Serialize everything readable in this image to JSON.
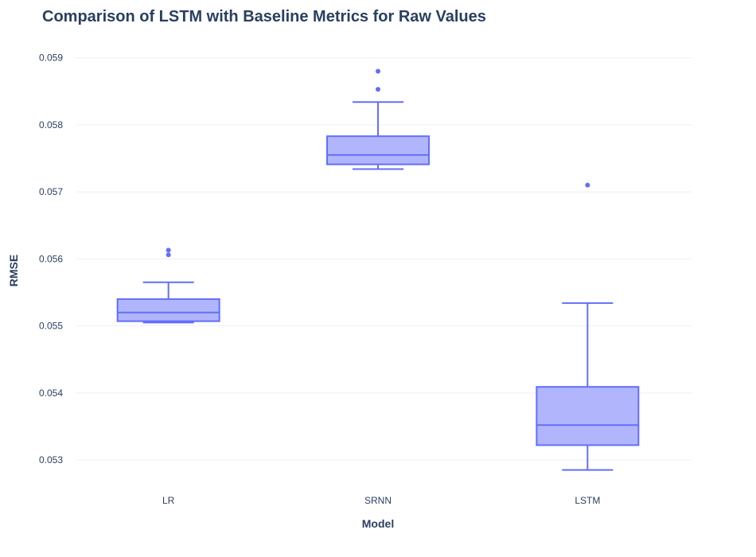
{
  "chart_data": {
    "type": "box",
    "title": "Comparison of LSTM with Baseline Metrics for Raw Values",
    "xlabel": "Model",
    "ylabel": "RMSE",
    "categories": [
      "LR",
      "SRNN",
      "LSTM"
    ],
    "ylim": [
      0.05262,
      0.05915
    ],
    "yticks": [
      0.053,
      0.054,
      0.055,
      0.056,
      0.057,
      0.058,
      0.059
    ],
    "ytick_labels": [
      "0.053",
      "0.054",
      "0.055",
      "0.056",
      "0.057",
      "0.058",
      "0.059"
    ],
    "grid": true,
    "boxes": [
      {
        "category": "LR",
        "lower_whisker": 0.05505,
        "q1": 0.05507,
        "median": 0.0552,
        "q3": 0.0554,
        "upper_whisker": 0.05565,
        "outliers": [
          0.05613,
          0.05606
        ]
      },
      {
        "category": "SRNN",
        "lower_whisker": 0.05734,
        "q1": 0.05741,
        "median": 0.05755,
        "q3": 0.05783,
        "upper_whisker": 0.05834,
        "outliers": [
          0.05853,
          0.0588
        ]
      },
      {
        "category": "LSTM",
        "lower_whisker": 0.05285,
        "q1": 0.05322,
        "median": 0.05352,
        "q3": 0.05409,
        "upper_whisker": 0.05534,
        "outliers": [
          0.0571
        ]
      }
    ],
    "colors": {
      "line": "#636efa",
      "fill": "#b1b6fc",
      "grid": "#ebf0f8",
      "text": "#2a3f5f"
    }
  }
}
